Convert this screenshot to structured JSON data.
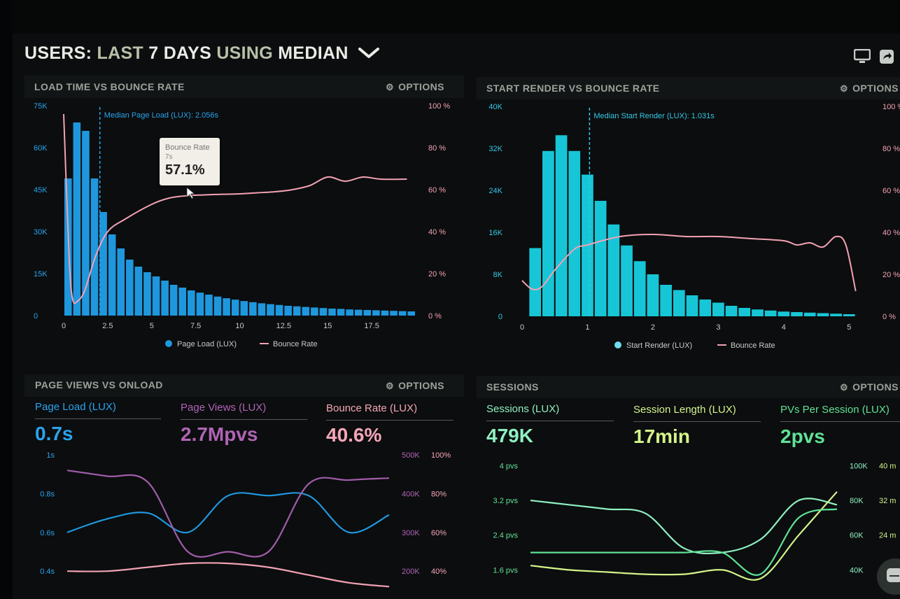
{
  "header": {
    "title_parts": [
      "USERS:",
      "LAST",
      "7 DAYS",
      "USING",
      "MEDIAN"
    ],
    "icons": [
      "monitor-icon",
      "share-icon"
    ]
  },
  "colors": {
    "blue": "#1f97dd",
    "cyan": "#17c6d6",
    "pink": "#f3a2b4",
    "purple": "#a05ca8",
    "mint": "#7fe3b0",
    "lime": "#c9f27a",
    "green": "#4fd889"
  },
  "panels": {
    "load_time": {
      "title": "LOAD TIME VS BOUNCE RATE",
      "options": "OPTIONS"
    },
    "start_render": {
      "title": "START RENDER VS BOUNCE RATE",
      "options": "OPTIONS"
    },
    "page_views": {
      "title": "PAGE VIEWS VS ONLOAD",
      "options": "OPTIONS"
    },
    "sessions": {
      "title": "SESSIONS",
      "options": "OPTIONS"
    }
  },
  "tooltip": {
    "label": "Bounce Rate",
    "sub": "7s",
    "value": "57.1%"
  },
  "metrics_pv": [
    {
      "label": "Page Load (LUX)",
      "value": "0.7s"
    },
    {
      "label": "Page Views (LUX)",
      "value": "2.7Mpvs"
    },
    {
      "label": "Bounce Rate (LUX)",
      "value": "40.6%"
    }
  ],
  "metrics_sessions": [
    {
      "label": "Sessions (LUX)",
      "value": "479K"
    },
    {
      "label": "Session Length (LUX)",
      "value": "17min"
    },
    {
      "label": "PVs Per Session (LUX)",
      "value": "2pvs"
    }
  ],
  "chart_data": [
    {
      "type": "bar",
      "title": "LOAD TIME VS BOUNCE RATE",
      "annotation": "Median Page Load (LUX): 2.056s",
      "median_x": 2.056,
      "x_ticks": [
        "0",
        "2.5",
        "5",
        "7.5",
        "10",
        "12.5",
        "15",
        "17.5"
      ],
      "x_range": [
        0,
        20
      ],
      "y_left_ticks": [
        "0",
        "15K",
        "30K",
        "45K",
        "60K",
        "75K"
      ],
      "y_left_range": [
        0,
        75000
      ],
      "y_right_ticks": [
        "0 %",
        "20 %",
        "40 %",
        "60 %",
        "80 %",
        "100 %"
      ],
      "y_right_range": [
        0,
        100
      ],
      "series": [
        {
          "name": "Page Load (LUX)",
          "bar_x_start": 0,
          "bar_width": 0.5,
          "values": [
            49000,
            69000,
            66000,
            49000,
            37000,
            29000,
            24000,
            20000,
            17500,
            15500,
            14000,
            12500,
            11000,
            10000,
            9000,
            8200,
            7500,
            6800,
            6200,
            5700,
            5200,
            4800,
            4400,
            4100,
            3800,
            3500,
            3300,
            3100,
            2900,
            2700,
            2500,
            2400,
            2200,
            2100,
            2000,
            1900,
            1800,
            1700,
            1600,
            1500
          ]
        },
        {
          "name": "Bounce Rate",
          "x": [
            0,
            0.3,
            0.5,
            0.8,
            1.2,
            1.8,
            2.5,
            3.5,
            5,
            6,
            7,
            8,
            9,
            10,
            11,
            12,
            13,
            14,
            15,
            16,
            17,
            18,
            19.5
          ],
          "values": [
            96,
            30,
            8,
            7,
            12,
            28,
            40,
            46,
            53,
            56,
            57.1,
            57.5,
            57.8,
            58,
            58.5,
            59,
            60,
            62,
            66,
            64,
            66,
            65,
            65
          ]
        }
      ],
      "legend": [
        "Page Load (LUX)",
        "Bounce Rate"
      ]
    },
    {
      "type": "bar",
      "title": "START RENDER VS BOUNCE RATE",
      "annotation": "Median Start Render (LUX): 1.031s",
      "median_x": 1.031,
      "x_ticks": [
        "0",
        "1",
        "2",
        "3",
        "4",
        "5"
      ],
      "x_range": [
        0,
        5.2
      ],
      "y_left_ticks": [
        "0",
        "8K",
        "16K",
        "24K",
        "32K",
        "40K"
      ],
      "y_left_range": [
        0,
        40000
      ],
      "y_right_ticks": [
        "0 %",
        "20 %",
        "40 %",
        "60 %",
        "80 %",
        "100 %"
      ],
      "y_right_range": [
        0,
        100
      ],
      "series": [
        {
          "name": "Start Render (LUX)",
          "bar_x_start": 0.1,
          "bar_width": 0.2,
          "values": [
            13000,
            31500,
            34500,
            31500,
            27000,
            22000,
            17500,
            13500,
            10500,
            8000,
            6000,
            5000,
            4000,
            3200,
            2600,
            2000,
            1600,
            1300,
            1100,
            900,
            800,
            700,
            600,
            500,
            400
          ]
        },
        {
          "name": "Bounce Rate",
          "x": [
            0,
            0.15,
            0.3,
            0.5,
            0.8,
            1.0,
            1.5,
            2,
            2.5,
            3,
            3.5,
            4,
            4.2,
            4.4,
            4.6,
            4.8,
            4.95,
            5.1
          ],
          "values": [
            17,
            13,
            14,
            22,
            32,
            34,
            38,
            39,
            38,
            38,
            37,
            36,
            34,
            35,
            33,
            38,
            34,
            12
          ]
        }
      ],
      "legend": [
        "Start Render (LUX)",
        "Bounce Rate"
      ]
    },
    {
      "type": "line",
      "title": "PAGE VIEWS VS ONLOAD",
      "y_left_ticks": [
        "1s",
        "0.8s",
        "0.6s",
        "0.4s"
      ],
      "y_right_ticks_a": [
        "500K",
        "400K",
        "300K",
        "200K"
      ],
      "y_right_ticks_b": [
        "100%",
        "80%",
        "60%",
        "40%"
      ],
      "series": [
        {
          "name": "Page Load (LUX)",
          "values": [
            0.6,
            0.67,
            0.7,
            0.6,
            0.79,
            0.79,
            0.79,
            0.6,
            0.69
          ]
        },
        {
          "name": "Page Views (LUX)",
          "values": [
            0.92,
            0.89,
            0.86,
            0.5,
            0.5,
            0.5,
            0.85,
            0.87,
            0.88
          ]
        },
        {
          "name": "Bounce Rate (LUX)",
          "values": [
            0.4,
            0.4,
            0.42,
            0.44,
            0.44,
            0.42,
            0.38,
            0.34,
            0.32
          ]
        }
      ]
    },
    {
      "type": "line",
      "title": "SESSIONS",
      "y_left_ticks": [
        "4 pvs",
        "3.2 pvs",
        "2.4 pvs",
        "1.6 pvs"
      ],
      "y_right_ticks_a": [
        "100K",
        "80K",
        "60K",
        "40K"
      ],
      "y_right_ticks_b": [
        "40 m",
        "32 m",
        "24 m"
      ],
      "series": [
        {
          "name": "Sessions (LUX)",
          "values": [
            3.2,
            3.1,
            3.0,
            2.9,
            2.1,
            2.0,
            2.3,
            3.2,
            3.1
          ]
        },
        {
          "name": "Session Length (LUX)",
          "values": [
            1.7,
            1.6,
            1.55,
            1.5,
            1.5,
            1.6,
            1.4,
            2.4,
            3.4
          ]
        },
        {
          "name": "PVs Per Session (LUX)",
          "values": [
            2.0,
            2.0,
            2.0,
            2.0,
            2.0,
            2.0,
            1.5,
            2.8,
            3.0
          ]
        }
      ]
    }
  ]
}
